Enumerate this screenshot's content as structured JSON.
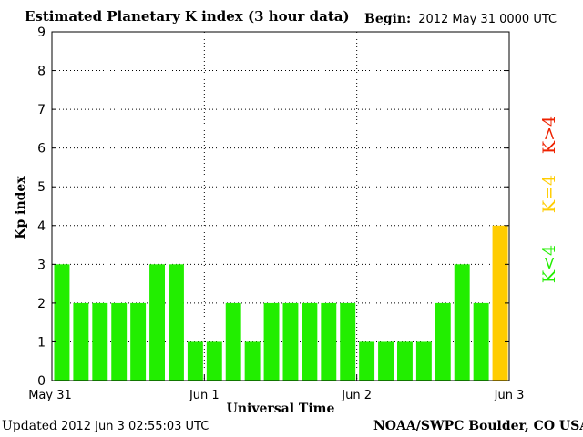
{
  "header": {
    "title": "Estimated Planetary K index (3 hour data)",
    "begin_label": "Begin:",
    "begin_value": "2012 May 31 0000 UTC"
  },
  "footer": {
    "updated_label": "Updated",
    "updated_value": "2012 Jun  3 02:55:03 UTC",
    "source": "NOAA/SWPC Boulder, CO USA"
  },
  "chart_data": {
    "type": "bar",
    "xlabel": "Universal Time",
    "ylabel": "Kp index",
    "ylim": [
      0,
      9
    ],
    "yticks": [
      0,
      1,
      2,
      3,
      4,
      5,
      6,
      7,
      8,
      9
    ],
    "x_tick_labels": [
      "May 31",
      "Jun 1",
      "Jun 2",
      "Jun 3"
    ],
    "bar_interval": "3 hour",
    "grid": "dotted, day boundaries and integer Kp levels",
    "values": [
      3,
      2,
      2,
      2,
      2,
      3,
      3,
      1,
      1,
      2,
      1,
      2,
      2,
      2,
      2,
      2,
      1,
      1,
      1,
      1,
      2,
      3,
      2,
      4
    ],
    "colors": {
      "below_4": "#22ee00",
      "equal_4": "#ffcc00",
      "above_4": "#ee2200"
    },
    "legend": [
      {
        "label": "K<4",
        "color": "#22ee00"
      },
      {
        "label": "K=4",
        "color": "#ffcc00"
      },
      {
        "label": "K>4",
        "color": "#ee2200"
      }
    ],
    "legend_placement": "right, vertical"
  }
}
